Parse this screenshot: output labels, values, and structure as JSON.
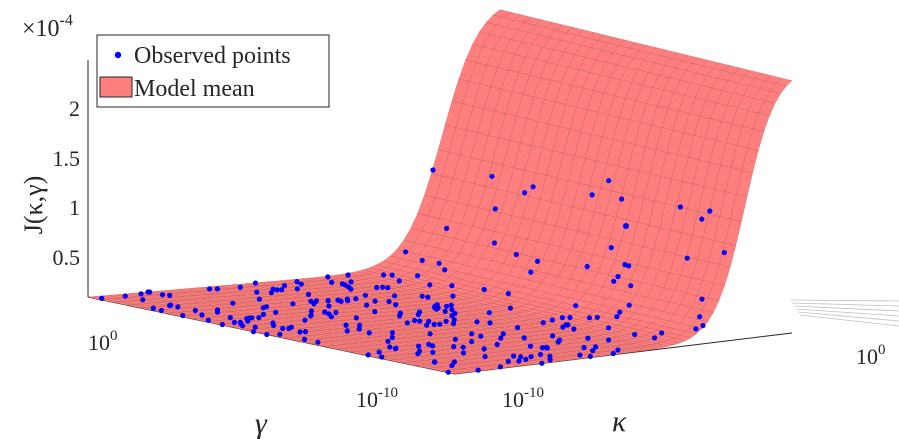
{
  "chart_data": {
    "type": "surface3d",
    "title": "",
    "xlabel": "γ",
    "ylabel": "κ",
    "zlabel": "J(κ,γ)",
    "z_exponent_label": "×10",
    "z_exponent_value": "-4",
    "x_scale": "log",
    "y_scale": "log",
    "x_ticks": [
      {
        "base": "10",
        "exp": "0"
      },
      {
        "base": "10",
        "exp": "-10"
      }
    ],
    "y_ticks": [
      {
        "base": "10",
        "exp": "-10"
      },
      {
        "base": "10",
        "exp": "0"
      }
    ],
    "z_ticks": [
      "0.5",
      "1",
      "1.5",
      "2"
    ],
    "zlim": [
      0,
      2.4
    ],
    "legend_position": "top-left",
    "legend": [
      {
        "label": "Observed points",
        "kind": "marker",
        "color": "#0000ff"
      },
      {
        "label": "Model mean",
        "kind": "patch",
        "color": "#ff7f7f"
      }
    ],
    "surface": {
      "face_color": "#ff7f7f",
      "edge_color": "#8b3a3a",
      "description_values": {
        "flat_region_value": 0.0,
        "max_value_at_large_kappa": 2.4
      }
    },
    "observed_point_color": "#0000ff",
    "outlier_point": {
      "kappa_log10": -2.5,
      "gamma_log10": -2,
      "value": 0.75
    }
  }
}
